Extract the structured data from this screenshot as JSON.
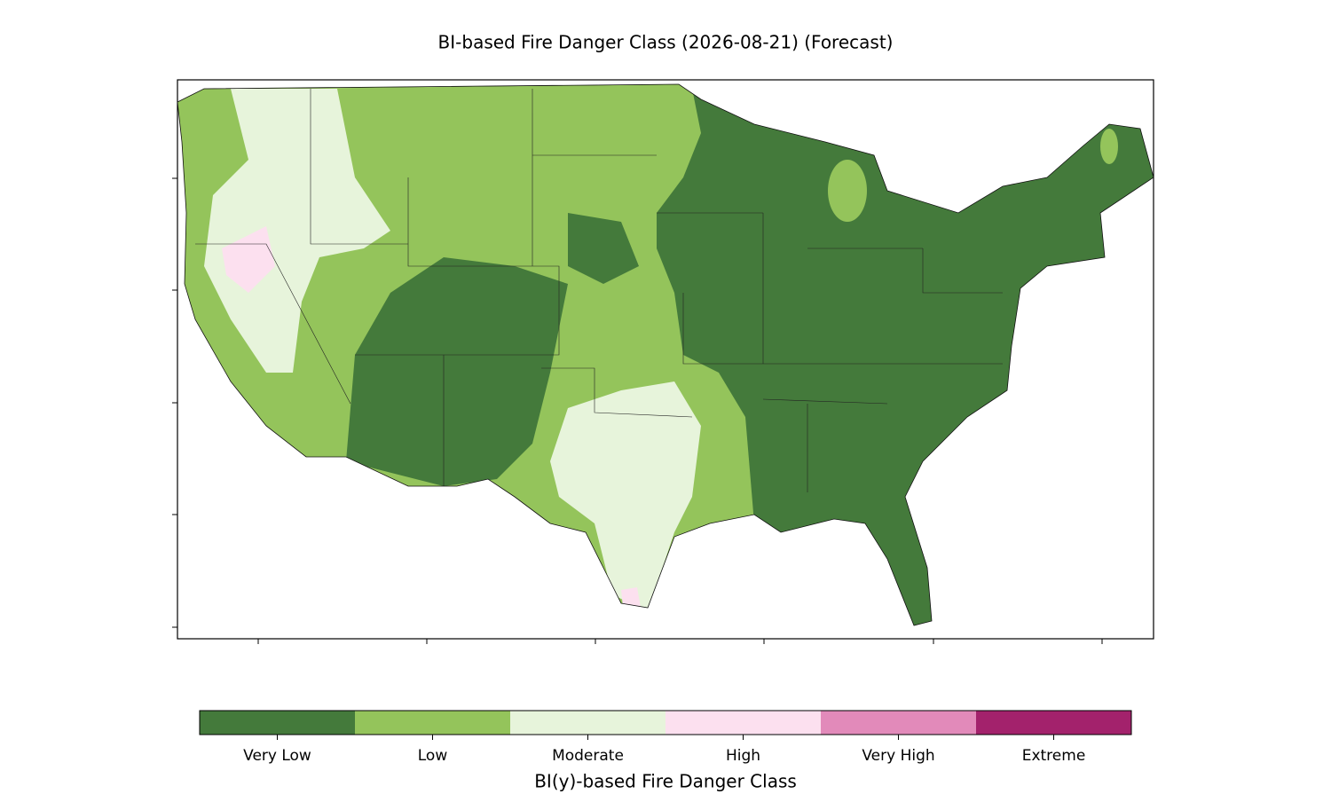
{
  "title": "BI-based Fire Danger Class (2026-08-21) (Forecast)",
  "colorbar": {
    "label": "BI(y)-based Fire Danger Class",
    "classes": [
      {
        "name": "Very Low",
        "color": "#447a3b"
      },
      {
        "name": "Low",
        "color": "#94c45b"
      },
      {
        "name": "Moderate",
        "color": "#e7f4db"
      },
      {
        "name": "High",
        "color": "#fce0ef"
      },
      {
        "name": "Very High",
        "color": "#e28aba"
      },
      {
        "name": "Extreme",
        "color": "#a3226c"
      }
    ]
  }
}
